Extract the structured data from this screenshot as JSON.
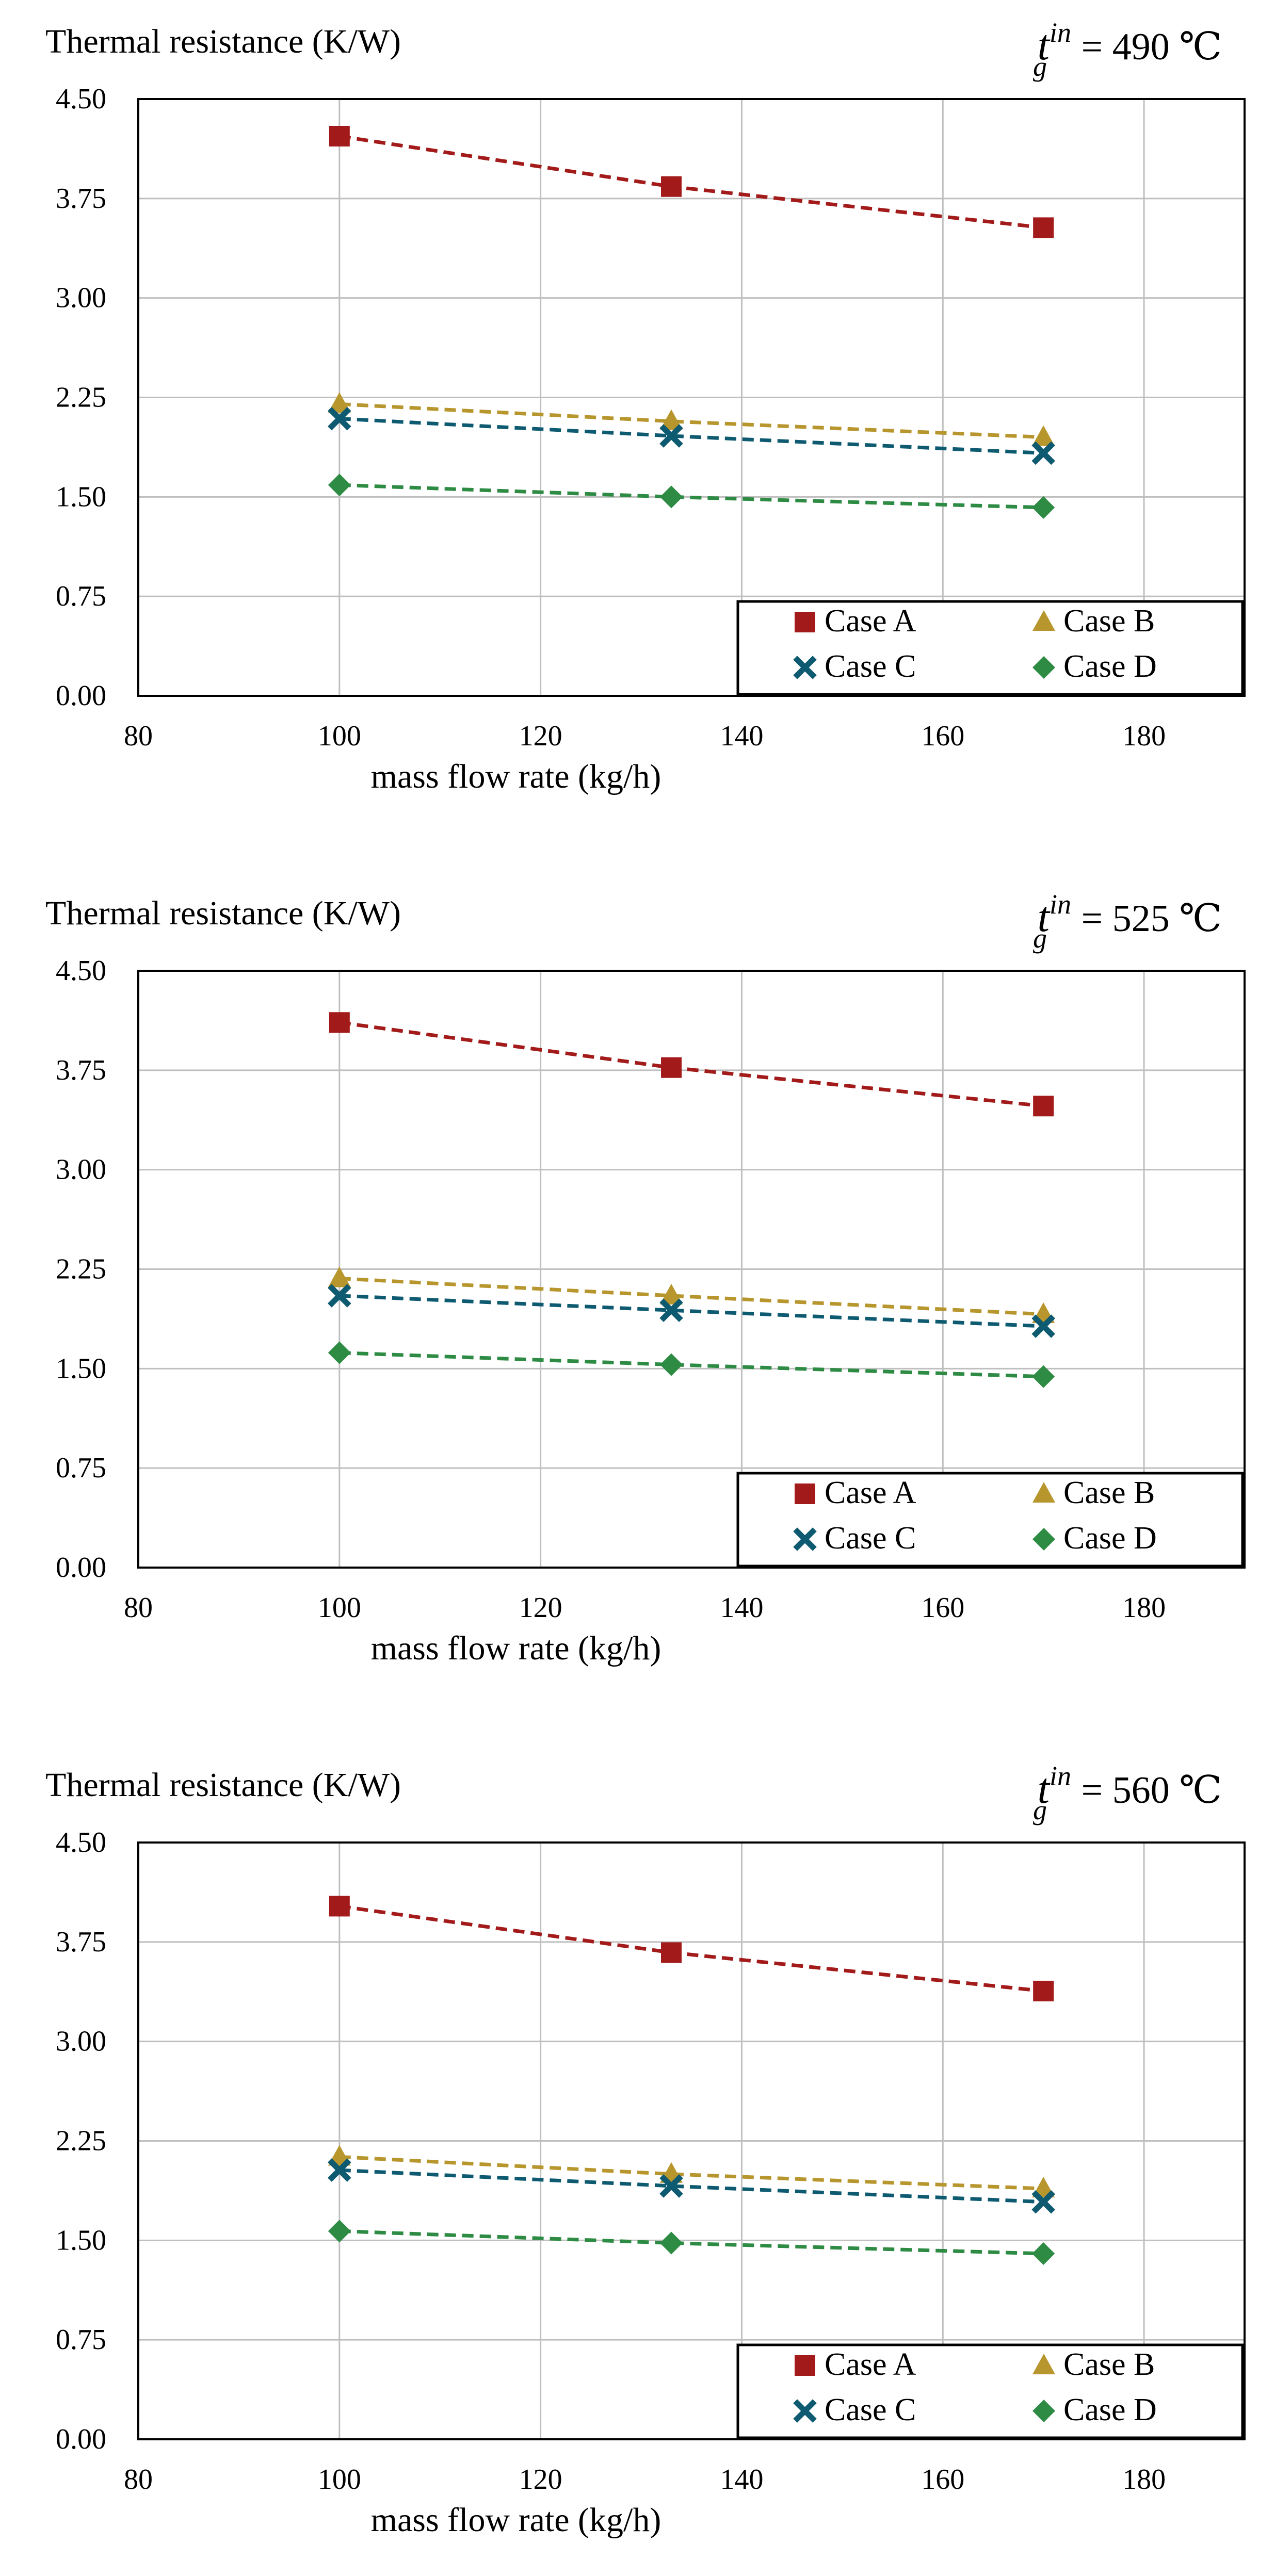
{
  "colors": {
    "case_a": "#A31A1A",
    "case_b": "#B8962E",
    "case_c": "#0E5A70",
    "case_d": "#2E8B44",
    "grid": "#BFBFBF"
  },
  "chart_data": [
    {
      "type": "line",
      "title": "",
      "ylabel": "Thermal resistance (K/W)",
      "xlabel": "mass flow rate  (kg/h)",
      "annotation": {
        "base": "t",
        "sub": "g",
        "sup": "in",
        "value": " = 490 ℃"
      },
      "xlim": [
        80,
        190
      ],
      "ylim": [
        0,
        4.5
      ],
      "x_ticks": [
        "80",
        "100",
        "120",
        "140",
        "160",
        "180"
      ],
      "y_ticks": [
        "0.00",
        "0.75",
        "1.50",
        "2.25",
        "3.00",
        "3.75",
        "4.50"
      ],
      "grid": true,
      "legend_placement": "bottom-right",
      "x": [
        100,
        133,
        170
      ],
      "series": [
        {
          "name": "Case A",
          "marker": "square",
          "values": [
            4.22,
            3.84,
            3.53
          ]
        },
        {
          "name": "Case B",
          "marker": "triangle",
          "values": [
            2.2,
            2.07,
            1.95
          ]
        },
        {
          "name": "Case C",
          "marker": "x",
          "values": [
            2.09,
            1.96,
            1.83
          ]
        },
        {
          "name": "Case D",
          "marker": "diamond",
          "values": [
            1.59,
            1.5,
            1.42
          ]
        }
      ]
    },
    {
      "type": "line",
      "title": "",
      "ylabel": "Thermal resistance (K/W)",
      "xlabel": "mass flow rate    (kg/h)",
      "annotation": {
        "base": "t",
        "sub": "g",
        "sup": "in",
        "value": " = 525 ℃"
      },
      "xlim": [
        80,
        190
      ],
      "ylim": [
        0,
        4.5
      ],
      "x_ticks": [
        "80",
        "100",
        "120",
        "140",
        "160",
        "180"
      ],
      "y_ticks": [
        "0.00",
        "0.75",
        "1.50",
        "2.25",
        "3.00",
        "3.75",
        "4.50"
      ],
      "grid": true,
      "legend_placement": "bottom-right",
      "x": [
        100,
        133,
        170
      ],
      "series": [
        {
          "name": "Case A",
          "marker": "square",
          "values": [
            4.11,
            3.77,
            3.48
          ]
        },
        {
          "name": "Case B",
          "marker": "triangle",
          "values": [
            2.18,
            2.05,
            1.91
          ]
        },
        {
          "name": "Case C",
          "marker": "x",
          "values": [
            2.05,
            1.94,
            1.82
          ]
        },
        {
          "name": "Case D",
          "marker": "diamond",
          "values": [
            1.62,
            1.53,
            1.44
          ]
        }
      ]
    },
    {
      "type": "line",
      "title": "",
      "ylabel": "Thermal resistance (K/W)",
      "xlabel": "mass flow rate  (kg/h)",
      "annotation": {
        "base": "t",
        "sub": "g",
        "sup": "in",
        "value": " = 560 ℃"
      },
      "xlim": [
        80,
        190
      ],
      "ylim": [
        0,
        4.5
      ],
      "x_ticks": [
        "80",
        "100",
        "120",
        "140",
        "160",
        "180"
      ],
      "y_ticks": [
        "0.00",
        "0.75",
        "1.50",
        "2.25",
        "3.00",
        "3.75",
        "4.50"
      ],
      "grid": true,
      "legend_placement": "bottom-right",
      "x": [
        100,
        133,
        170
      ],
      "series": [
        {
          "name": "Case A",
          "marker": "square",
          "values": [
            4.02,
            3.67,
            3.38
          ]
        },
        {
          "name": "Case B",
          "marker": "triangle",
          "values": [
            2.13,
            2.0,
            1.89
          ]
        },
        {
          "name": "Case C",
          "marker": "x",
          "values": [
            2.03,
            1.91,
            1.79
          ]
        },
        {
          "name": "Case D",
          "marker": "diamond",
          "values": [
            1.57,
            1.48,
            1.4
          ]
        }
      ]
    }
  ]
}
